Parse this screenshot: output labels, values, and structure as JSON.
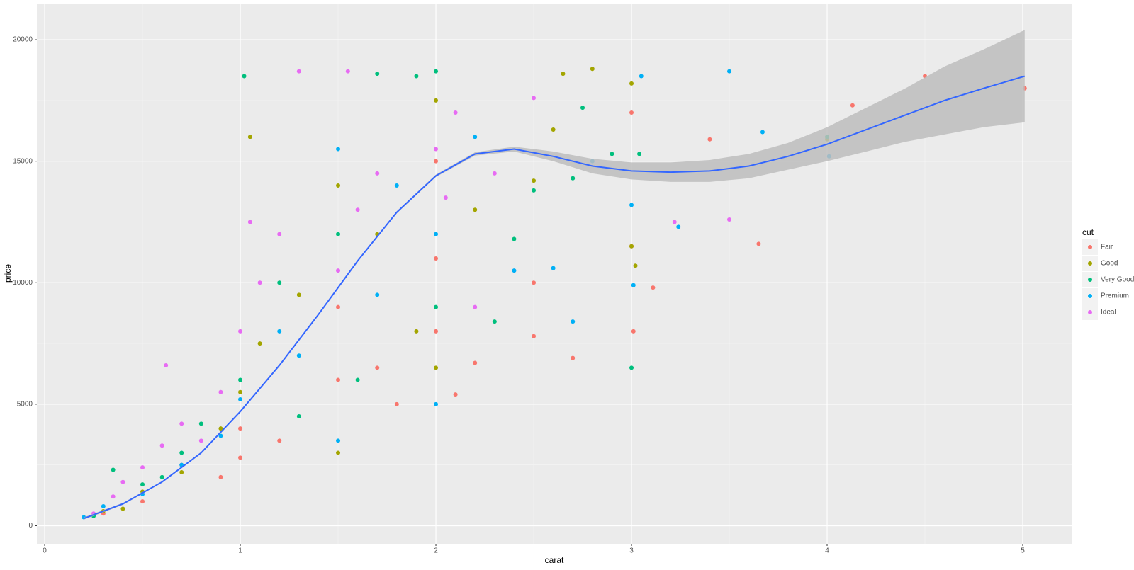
{
  "chart_data": {
    "type": "scatter",
    "x_label": "carat",
    "y_label": "price",
    "legend_title": "cut",
    "legend_position": "right",
    "grid": true,
    "xlim": [
      -0.04,
      5.25
    ],
    "ylim": [
      -744,
      21488
    ],
    "xticks": [
      0,
      1,
      2,
      3,
      4,
      5
    ],
    "yticks": [
      0,
      5000,
      10000,
      15000,
      20000
    ],
    "series": [
      {
        "name": "Fair",
        "color": "#F8766D",
        "x": [
          0.3,
          0.5,
          0.7,
          0.9,
          1.0,
          1.0,
          1.2,
          1.5,
          1.5,
          1.7,
          2.0,
          2.0,
          2.0,
          2.2,
          2.5,
          2.5,
          2.7,
          3.0,
          3.0,
          3.01,
          3.11,
          3.4,
          3.65,
          4.13,
          4.5,
          5.01,
          1.8,
          2.1
        ],
        "y": [
          500,
          1000,
          2500,
          2000,
          2800,
          4000,
          3500,
          6000,
          9000,
          6500,
          8000,
          11000,
          15000,
          6700,
          7800,
          10000,
          6900,
          17000,
          11500,
          8000,
          9800,
          15900,
          11600,
          17300,
          18500,
          18000,
          5000,
          5400
        ]
      },
      {
        "name": "Good",
        "color": "#A3A500",
        "x": [
          0.3,
          0.5,
          0.7,
          0.9,
          1.0,
          1.05,
          1.1,
          1.3,
          1.5,
          1.5,
          1.7,
          2.0,
          2.0,
          2.2,
          2.5,
          2.6,
          2.65,
          2.8,
          3.0,
          3.0,
          3.02,
          4.0,
          1.9,
          0.4
        ],
        "y": [
          600,
          1400,
          2200,
          4000,
          5500,
          16000,
          7500,
          9500,
          3000,
          14000,
          12000,
          6500,
          17500,
          13000,
          14200,
          16300,
          18600,
          18800,
          18200,
          11500,
          10700,
          15900,
          8000,
          700
        ]
      },
      {
        "name": "Very Good",
        "color": "#00BF7D",
        "x": [
          0.25,
          0.35,
          0.5,
          0.7,
          0.8,
          1.0,
          1.02,
          1.2,
          1.5,
          1.6,
          1.7,
          1.9,
          2.0,
          2.0,
          2.3,
          2.5,
          2.7,
          2.75,
          2.9,
          3.0,
          3.04,
          4.0,
          2.4,
          1.3,
          0.6
        ],
        "y": [
          400,
          2300,
          1700,
          3000,
          4200,
          6000,
          18500,
          10000,
          12000,
          6000,
          18600,
          18500,
          9000,
          18700,
          8400,
          13800,
          14300,
          17200,
          15300,
          6500,
          15300,
          16000,
          11800,
          4500,
          2000
        ]
      },
      {
        "name": "Premium",
        "color": "#00B0F6",
        "x": [
          0.2,
          0.3,
          0.5,
          0.7,
          0.9,
          1.0,
          1.2,
          1.5,
          1.5,
          1.7,
          2.0,
          2.0,
          2.2,
          2.4,
          2.6,
          2.7,
          2.8,
          3.0,
          3.01,
          3.05,
          3.24,
          3.5,
          3.67,
          4.01,
          1.3,
          1.8
        ],
        "y": [
          350,
          800,
          1300,
          2500,
          3700,
          5200,
          8000,
          3500,
          15500,
          9500,
          5000,
          12000,
          16000,
          10500,
          10600,
          8400,
          15000,
          13200,
          9900,
          18500,
          12300,
          18700,
          16200,
          15200,
          7000,
          14000
        ]
      },
      {
        "name": "Ideal",
        "color": "#E76BF3",
        "x": [
          0.25,
          0.35,
          0.4,
          0.5,
          0.6,
          0.62,
          0.7,
          0.8,
          1.0,
          1.1,
          1.2,
          1.3,
          1.5,
          1.55,
          1.6,
          1.7,
          2.0,
          2.1,
          2.2,
          2.3,
          2.5,
          3.22,
          3.5,
          1.05,
          0.9,
          2.05
        ],
        "y": [
          500,
          1200,
          1800,
          2400,
          3300,
          6600,
          4200,
          3500,
          8000,
          10000,
          12000,
          18700,
          10500,
          18700,
          13000,
          14500,
          15500,
          17000,
          9000,
          14500,
          17600,
          12500,
          12600,
          12500,
          5500,
          13500
        ]
      }
    ],
    "smooth": {
      "color": "#3366FF",
      "band_color": "#bdbdbd",
      "x": [
        0.2,
        0.4,
        0.6,
        0.8,
        1.0,
        1.2,
        1.4,
        1.6,
        1.8,
        2.0,
        2.2,
        2.4,
        2.6,
        2.8,
        3.0,
        3.2,
        3.4,
        3.6,
        3.8,
        4.0,
        4.2,
        4.4,
        4.6,
        4.8,
        5.01
      ],
      "y": [
        300,
        900,
        1800,
        3000,
        4700,
        6600,
        8700,
        10900,
        12900,
        14400,
        15300,
        15500,
        15200,
        14800,
        14600,
        14550,
        14600,
        14800,
        15200,
        15700,
        16300,
        16900,
        17500,
        18000,
        18500
      ],
      "lower": [
        250,
        860,
        1770,
        2970,
        4670,
        6570,
        8670,
        10870,
        12860,
        14350,
        15230,
        15400,
        15000,
        14500,
        14250,
        14150,
        14150,
        14300,
        14650,
        15000,
        15400,
        15800,
        16100,
        16400,
        16600
      ],
      "upper": [
        350,
        940,
        1830,
        3030,
        4730,
        6630,
        8730,
        10930,
        12940,
        14450,
        15370,
        15600,
        15400,
        15100,
        14950,
        14950,
        15050,
        15300,
        15750,
        16400,
        17200,
        18000,
        18900,
        19600,
        20400
      ]
    }
  }
}
